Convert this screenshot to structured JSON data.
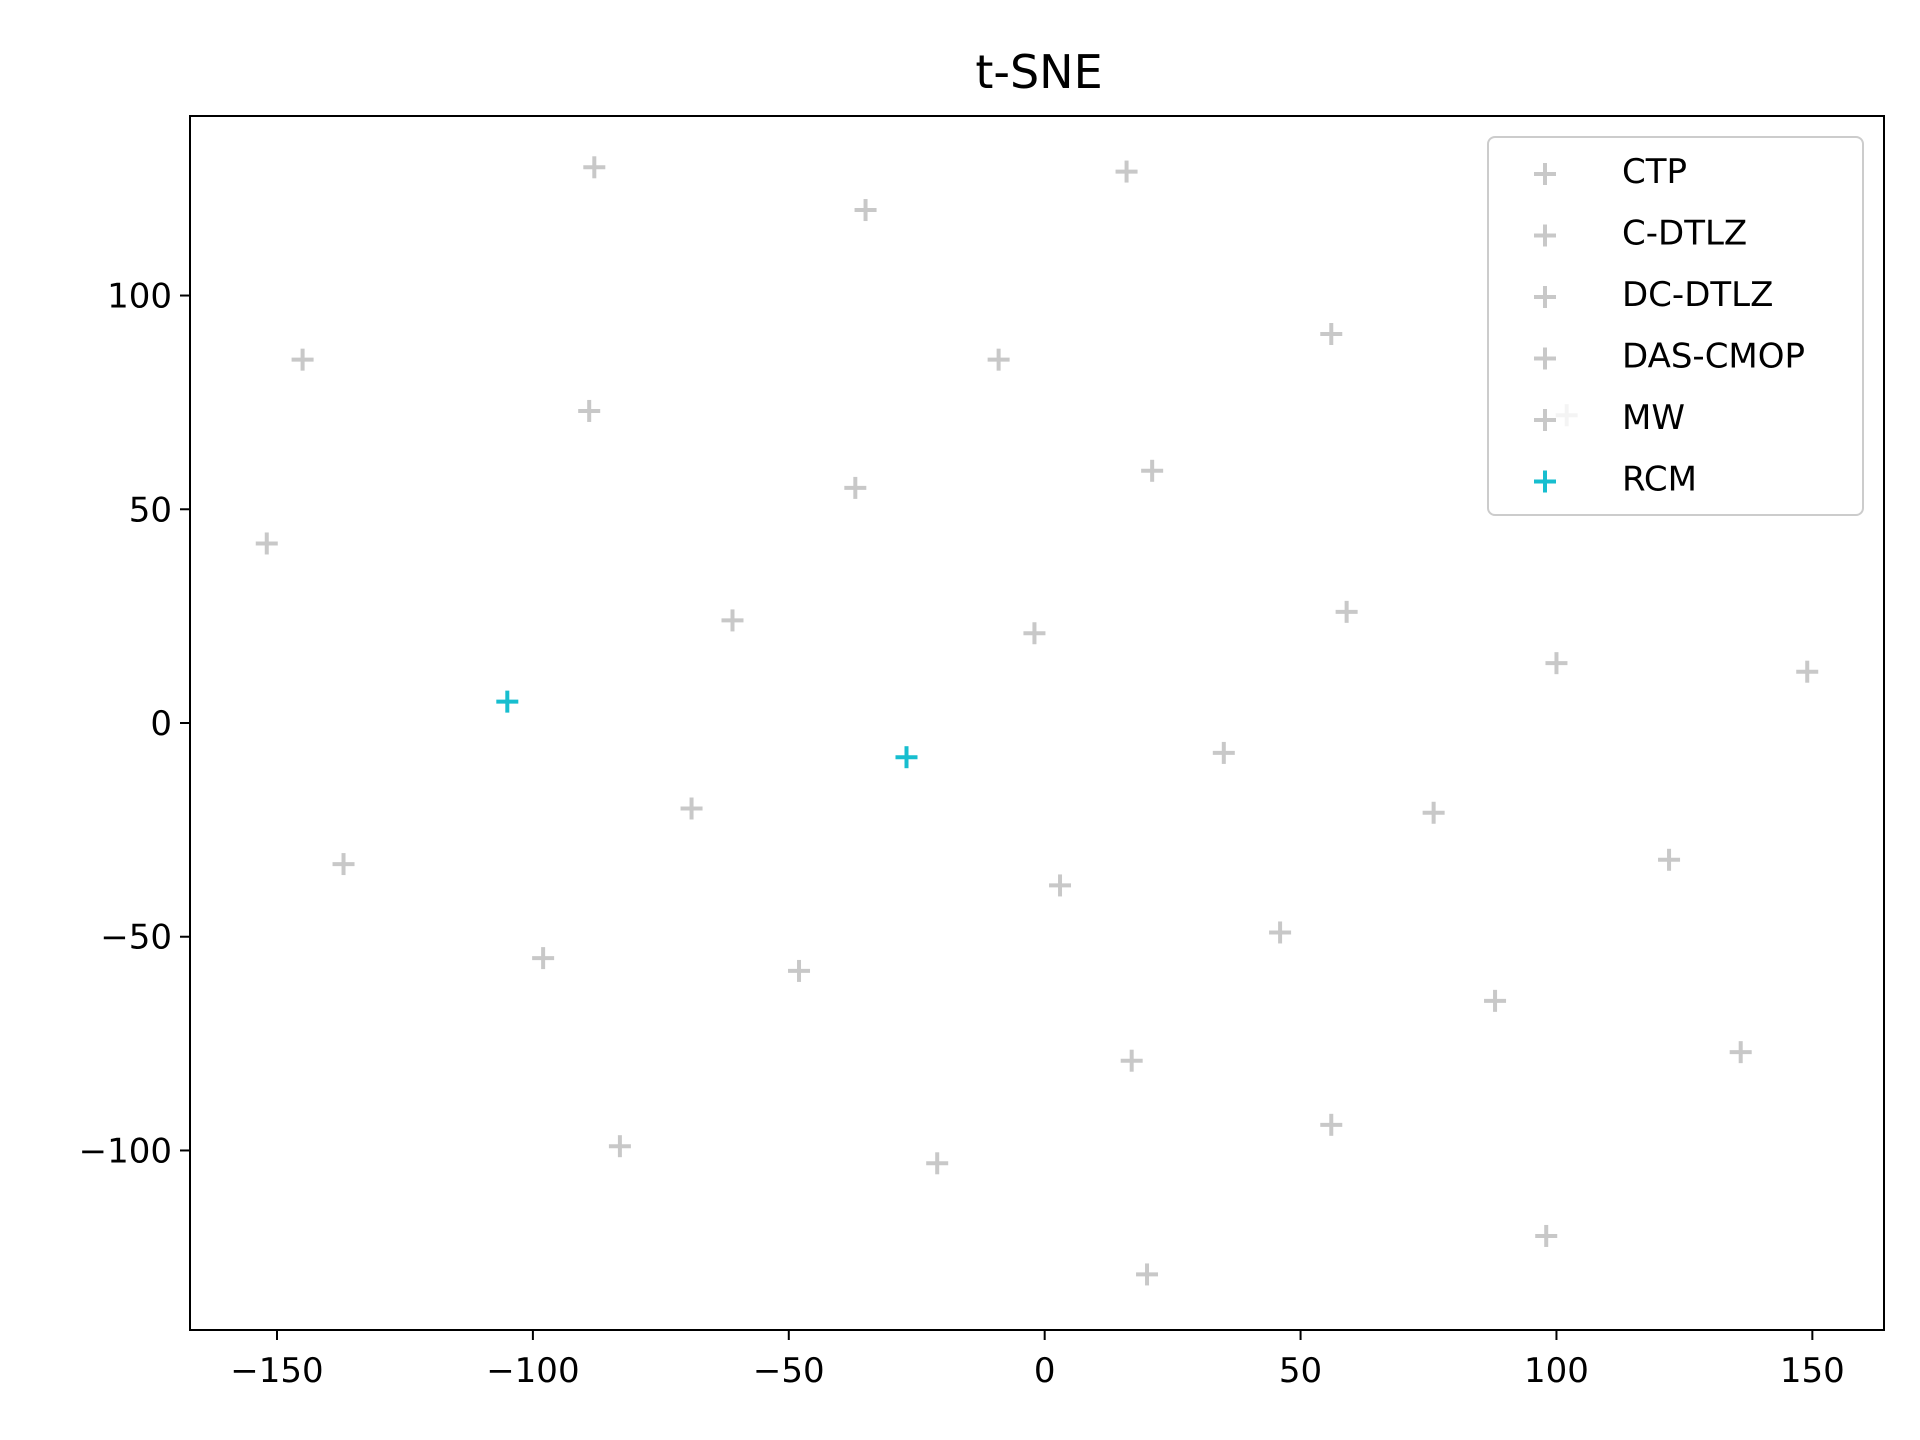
{
  "chart_data": {
    "type": "scatter",
    "title": "t-SNE",
    "xlabel": "",
    "ylabel": "",
    "xlim": [
      -167,
      164
    ],
    "ylim": [
      -142,
      142
    ],
    "xticks": [
      -150,
      -100,
      -50,
      0,
      50,
      100,
      150
    ],
    "yticks": [
      -100,
      -50,
      0,
      50,
      100
    ],
    "xtick_labels": [
      "−150",
      "−100",
      "−50",
      "0",
      "50",
      "100",
      "150"
    ],
    "ytick_labels": [
      "−100",
      "−50",
      "0",
      "50",
      "100"
    ],
    "grid": false,
    "marker": "+",
    "legend_position": "top-right",
    "series": [
      {
        "name": "CTP",
        "color": "#c8c8c8",
        "points": [
          [
            -88,
            130
          ],
          [
            16,
            129
          ],
          [
            -35,
            120
          ],
          [
            -145,
            85
          ],
          [
            -9,
            85
          ],
          [
            -89,
            73
          ],
          [
            -37,
            55
          ]
        ]
      },
      {
        "name": "C-DTLZ",
        "color": "#c8c8c8",
        "points": [
          [
            56,
            91
          ],
          [
            21,
            59
          ],
          [
            -152,
            42
          ],
          [
            -61,
            24
          ],
          [
            59,
            26
          ],
          [
            -2,
            21
          ],
          [
            100,
            14
          ]
        ]
      },
      {
        "name": "DC-DTLZ",
        "color": "#c8c8c8",
        "points": [
          [
            149,
            12
          ],
          [
            35,
            -7
          ],
          [
            -69,
            -20
          ],
          [
            76,
            -21
          ],
          [
            -137,
            -33
          ],
          [
            122,
            -32
          ]
        ]
      },
      {
        "name": "DAS-CMOP",
        "color": "#c8c8c8",
        "points": [
          [
            3,
            -38
          ],
          [
            46,
            -49
          ],
          [
            -98,
            -55
          ],
          [
            -48,
            -58
          ],
          [
            88,
            -65
          ],
          [
            136,
            -77
          ]
        ]
      },
      {
        "name": "MW",
        "color": "#c8c8c8",
        "points": [
          [
            17,
            -79
          ],
          [
            56,
            -94
          ],
          [
            -83,
            -99
          ],
          [
            -21,
            -103
          ],
          [
            98,
            -120
          ],
          [
            20,
            -129
          ],
          [
            102,
            72
          ]
        ]
      },
      {
        "name": "RCM",
        "color": "#17becf",
        "points": [
          [
            -105,
            5
          ],
          [
            -27,
            -8
          ]
        ]
      }
    ]
  }
}
